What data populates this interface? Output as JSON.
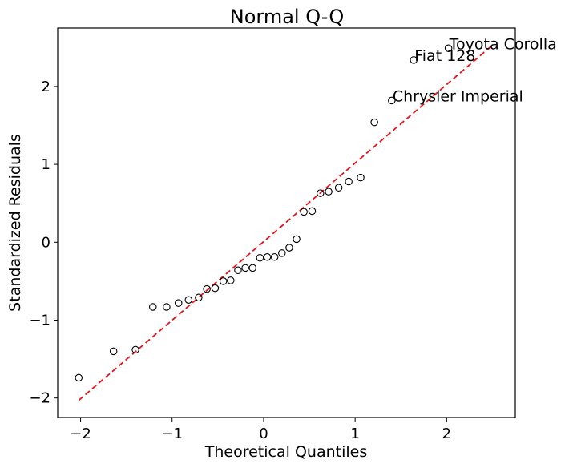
{
  "chart_data": {
    "type": "scatter",
    "title": "Normal Q-Q",
    "xlabel": "Theoretical Quantiles",
    "ylabel": "Standardized Residuals",
    "xlim": [
      -2.25,
      2.75
    ],
    "ylim": [
      -2.25,
      2.75
    ],
    "xticks": [
      -2,
      -1,
      0,
      1,
      2
    ],
    "yticks": [
      -2,
      -1,
      0,
      1,
      2
    ],
    "xtick_labels": [
      "−2",
      "−1",
      "0",
      "1",
      "2"
    ],
    "ytick_labels": [
      "−2",
      "−1",
      "0",
      "1",
      "2"
    ],
    "reference_line": {
      "x": [
        -2.02,
        2.5
      ],
      "y": [
        -2.03,
        2.53
      ],
      "color": "#e4141a",
      "style": "dashed"
    },
    "marker": {
      "shape": "open-circle",
      "color": "#000000"
    },
    "points": [
      {
        "x": -2.02,
        "y": -1.74
      },
      {
        "x": -1.64,
        "y": -1.4
      },
      {
        "x": -1.4,
        "y": -1.38
      },
      {
        "x": -1.21,
        "y": -0.83
      },
      {
        "x": -1.06,
        "y": -0.83
      },
      {
        "x": -0.93,
        "y": -0.78
      },
      {
        "x": -0.82,
        "y": -0.74
      },
      {
        "x": -0.71,
        "y": -0.71
      },
      {
        "x": -0.62,
        "y": -0.6
      },
      {
        "x": -0.53,
        "y": -0.59
      },
      {
        "x": -0.44,
        "y": -0.5
      },
      {
        "x": -0.36,
        "y": -0.49
      },
      {
        "x": -0.28,
        "y": -0.36
      },
      {
        "x": -0.2,
        "y": -0.33
      },
      {
        "x": -0.12,
        "y": -0.33
      },
      {
        "x": -0.04,
        "y": -0.2
      },
      {
        "x": 0.04,
        "y": -0.19
      },
      {
        "x": 0.12,
        "y": -0.19
      },
      {
        "x": 0.2,
        "y": -0.14
      },
      {
        "x": 0.28,
        "y": -0.07
      },
      {
        "x": 0.36,
        "y": 0.04
      },
      {
        "x": 0.44,
        "y": 0.39
      },
      {
        "x": 0.53,
        "y": 0.4
      },
      {
        "x": 0.62,
        "y": 0.63
      },
      {
        "x": 0.71,
        "y": 0.65
      },
      {
        "x": 0.82,
        "y": 0.7
      },
      {
        "x": 0.93,
        "y": 0.78
      },
      {
        "x": 1.06,
        "y": 0.83
      },
      {
        "x": 1.21,
        "y": 1.54
      },
      {
        "x": 1.4,
        "y": 1.82,
        "label": "Chrysler Imperial"
      },
      {
        "x": 1.64,
        "y": 2.34,
        "label": "Fiat 128"
      },
      {
        "x": 2.02,
        "y": 2.49,
        "label": "Toyota Corolla"
      }
    ]
  }
}
